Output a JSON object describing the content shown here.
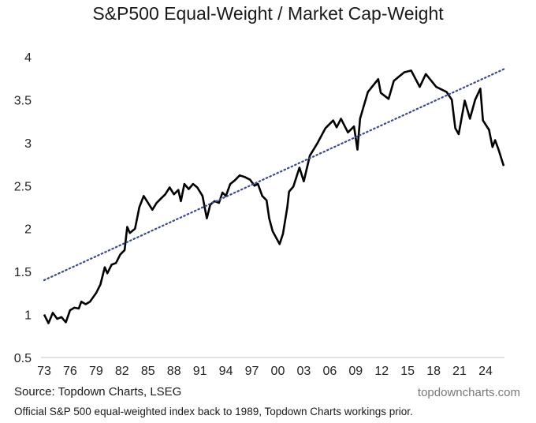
{
  "chart_data": {
    "type": "line",
    "title": "S&P500 Equal-Weight / Market Cap-Weight",
    "xlabel": "",
    "ylabel": "",
    "ylim": [
      0.5,
      4
    ],
    "yticks": [
      "0.5",
      "1",
      "1.5",
      "2",
      "2.5",
      "3",
      "3.5",
      "4"
    ],
    "xticks": [
      "73",
      "76",
      "79",
      "82",
      "85",
      "88",
      "91",
      "94",
      "97",
      "00",
      "03",
      "06",
      "09",
      "12",
      "15",
      "18",
      "21",
      "24"
    ],
    "grid": false,
    "series": [
      {
        "style": "solid",
        "color": "#000000",
        "points": [
          [
            1973.0,
            1.0
          ],
          [
            1973.5,
            0.9
          ],
          [
            1974.0,
            1.02
          ],
          [
            1974.5,
            0.95
          ],
          [
            1975.0,
            0.97
          ],
          [
            1975.5,
            0.91
          ],
          [
            1976.0,
            1.05
          ],
          [
            1976.5,
            1.08
          ],
          [
            1977.0,
            1.07
          ],
          [
            1977.3,
            1.15
          ],
          [
            1977.8,
            1.12
          ],
          [
            1978.3,
            1.15
          ],
          [
            1979.0,
            1.25
          ],
          [
            1979.5,
            1.35
          ],
          [
            1980.0,
            1.55
          ],
          [
            1980.3,
            1.48
          ],
          [
            1980.8,
            1.58
          ],
          [
            1981.3,
            1.6
          ],
          [
            1981.8,
            1.7
          ],
          [
            1982.3,
            1.75
          ],
          [
            1982.6,
            2.02
          ],
          [
            1982.9,
            1.95
          ],
          [
            1983.5,
            2.0
          ],
          [
            1984.0,
            2.25
          ],
          [
            1984.5,
            2.38
          ],
          [
            1985.0,
            2.3
          ],
          [
            1985.5,
            2.22
          ],
          [
            1986.0,
            2.3
          ],
          [
            1986.5,
            2.35
          ],
          [
            1987.0,
            2.4
          ],
          [
            1987.5,
            2.48
          ],
          [
            1988.0,
            2.4
          ],
          [
            1988.5,
            2.45
          ],
          [
            1988.8,
            2.32
          ],
          [
            1989.2,
            2.52
          ],
          [
            1989.7,
            2.46
          ],
          [
            1990.2,
            2.52
          ],
          [
            1990.7,
            2.48
          ],
          [
            1991.3,
            2.38
          ],
          [
            1991.8,
            2.12
          ],
          [
            1992.2,
            2.28
          ],
          [
            1992.7,
            2.32
          ],
          [
            1993.2,
            2.3
          ],
          [
            1993.6,
            2.42
          ],
          [
            1994.0,
            2.38
          ],
          [
            1994.5,
            2.52
          ],
          [
            1995.0,
            2.56
          ],
          [
            1995.6,
            2.62
          ],
          [
            1996.2,
            2.6
          ],
          [
            1996.8,
            2.57
          ],
          [
            1997.3,
            2.5
          ],
          [
            1997.7,
            2.52
          ],
          [
            1998.2,
            2.38
          ],
          [
            1998.7,
            2.33
          ],
          [
            1999.0,
            2.12
          ],
          [
            1999.4,
            1.97
          ],
          [
            2000.2,
            1.82
          ],
          [
            2000.6,
            1.94
          ],
          [
            2001.1,
            2.25
          ],
          [
            2001.3,
            2.43
          ],
          [
            2001.8,
            2.49
          ],
          [
            2002.5,
            2.71
          ],
          [
            2003.0,
            2.55
          ],
          [
            2003.7,
            2.85
          ],
          [
            2004.6,
            3.0
          ],
          [
            2005.5,
            3.17
          ],
          [
            2006.4,
            3.26
          ],
          [
            2006.8,
            3.18
          ],
          [
            2007.3,
            3.28
          ],
          [
            2008.1,
            3.12
          ],
          [
            2008.8,
            3.19
          ],
          [
            2009.2,
            2.92
          ],
          [
            2009.5,
            3.28
          ],
          [
            2010.4,
            3.59
          ],
          [
            2011.6,
            3.74
          ],
          [
            2011.9,
            3.58
          ],
          [
            2012.8,
            3.51
          ],
          [
            2013.4,
            3.72
          ],
          [
            2014.6,
            3.82
          ],
          [
            2015.4,
            3.84
          ],
          [
            2016.4,
            3.65
          ],
          [
            2017.1,
            3.8
          ],
          [
            2018.3,
            3.65
          ],
          [
            2019.5,
            3.59
          ],
          [
            2020.1,
            3.5
          ],
          [
            2020.5,
            3.17
          ],
          [
            2020.9,
            3.1
          ],
          [
            2021.6,
            3.49
          ],
          [
            2022.2,
            3.28
          ],
          [
            2022.8,
            3.5
          ],
          [
            2023.4,
            3.63
          ],
          [
            2023.7,
            3.26
          ],
          [
            2024.4,
            3.15
          ],
          [
            2024.8,
            2.95
          ],
          [
            2025.1,
            3.03
          ],
          [
            2025.5,
            2.92
          ],
          [
            2026.1,
            2.73
          ]
        ]
      },
      {
        "style": "dotted",
        "color": "#3d4a8c",
        "points": [
          [
            1973.0,
            1.4
          ],
          [
            2026.2,
            3.86
          ]
        ]
      }
    ]
  },
  "footer": {
    "source": "Source: Topdown Charts, LSEG",
    "brand": "topdowncharts.com",
    "note": "Official S&P 500 equal-weighted index back to 1989, Topdown Charts workings prior."
  }
}
